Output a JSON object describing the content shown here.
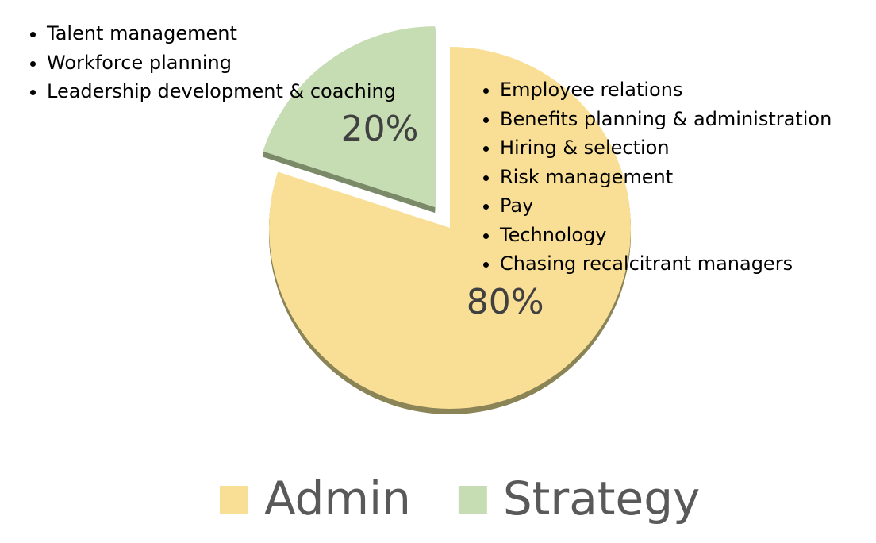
{
  "chart_data": {
    "type": "pie",
    "categories": [
      "Admin",
      "Strategy"
    ],
    "values": [
      80,
      20
    ],
    "value_labels": [
      "80%",
      "20%"
    ],
    "colors": [
      "#f9df95",
      "#c6ddb4"
    ],
    "explode": [
      false,
      true
    ],
    "legend": "bottom",
    "annotations": [
      [
        "Talent management",
        "Workforce planning",
        "Leadership development & coaching"
      ],
      [
        "Employee relations",
        "Benefits planning & administration",
        "Hiring & selection",
        "Risk management",
        "Pay",
        "Technology",
        "Chasing recalcitrant managers"
      ]
    ]
  }
}
